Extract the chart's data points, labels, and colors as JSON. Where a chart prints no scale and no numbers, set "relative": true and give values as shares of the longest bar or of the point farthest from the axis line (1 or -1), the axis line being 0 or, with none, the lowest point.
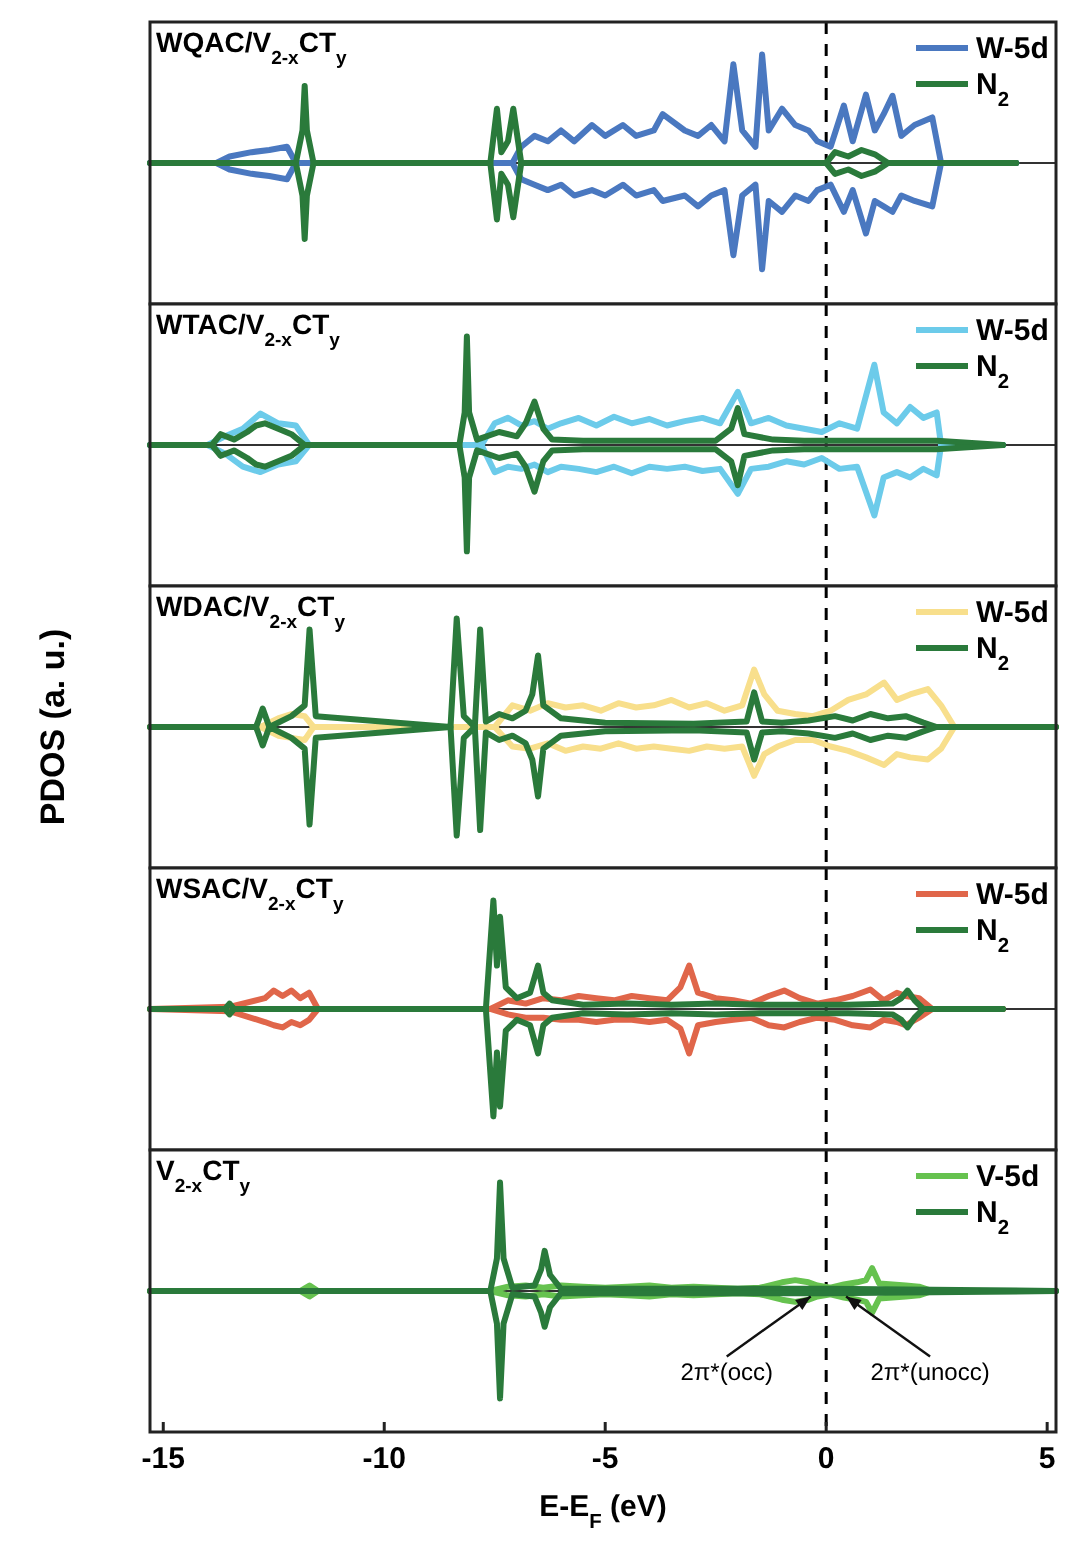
{
  "chart_data": [
    {
      "type": "line",
      "title": "WQAC/V$_{2-x}$CT$_{y}$",
      "relative": true,
      "xlim": [
        -15.3,
        5.2
      ],
      "xticks": [
        -15,
        -10,
        -5,
        0,
        5
      ],
      "tick_labels": false,
      "legend": "top right",
      "ref_lines": [
        {
          "axis": "x",
          "value": 0,
          "color": "#000000",
          "line_style": "dashed"
        }
      ],
      "series": [
        {
          "name": "W-5d",
          "color": "#4a78c0",
          "x": [
            -15.3,
            -13.8,
            -13.5,
            -13.0,
            -12.6,
            -12.2,
            -12.0,
            -7.1,
            -6.9,
            -6.6,
            -6.3,
            -6.0,
            -5.7,
            -5.3,
            -5.0,
            -4.6,
            -4.3,
            -3.9,
            -3.7,
            -3.2,
            -2.9,
            -2.6,
            -2.3,
            -2.1,
            -1.9,
            -1.6,
            -1.45,
            -1.3,
            -1.0,
            -0.7,
            -0.4,
            -0.2,
            0.1,
            0.4,
            0.6,
            0.9,
            1.1,
            1.3,
            1.5,
            1.7,
            2.0,
            2.4,
            2.6,
            4.3
          ],
          "values": [
            0,
            0,
            0.06,
            0.1,
            0.12,
            0.15,
            0,
            0,
            0.15,
            0.25,
            0.2,
            0.3,
            0.2,
            0.35,
            0.25,
            0.35,
            0.25,
            0.3,
            0.45,
            0.3,
            0.25,
            0.35,
            0.2,
            0.91,
            0.3,
            0.15,
            1.0,
            0.3,
            0.5,
            0.35,
            0.3,
            0.2,
            0.15,
            0.53,
            0.2,
            0.63,
            0.3,
            0.45,
            0.62,
            0.25,
            0.35,
            0.42,
            0,
            0
          ]
        },
        {
          "color": "#4a78c0",
          "x": [
            -15.3,
            -13.8,
            -13.5,
            -13.0,
            -12.6,
            -12.2,
            -12.0,
            -7.1,
            -6.9,
            -6.6,
            -6.3,
            -6.0,
            -5.7,
            -5.3,
            -5.0,
            -4.6,
            -4.3,
            -3.9,
            -3.7,
            -3.2,
            -2.9,
            -2.6,
            -2.3,
            -2.1,
            -1.9,
            -1.6,
            -1.45,
            -1.3,
            -1.0,
            -0.7,
            -0.4,
            -0.2,
            0.1,
            0.4,
            0.6,
            0.9,
            1.1,
            1.3,
            1.5,
            1.7,
            2.0,
            2.4,
            2.6,
            4.3
          ],
          "values": [
            0,
            0,
            -0.06,
            -0.1,
            -0.12,
            -0.15,
            0,
            0,
            -0.15,
            -0.2,
            -0.25,
            -0.2,
            -0.3,
            -0.25,
            -0.3,
            -0.2,
            -0.3,
            -0.25,
            -0.35,
            -0.3,
            -0.4,
            -0.3,
            -0.25,
            -0.85,
            -0.3,
            -0.2,
            -0.98,
            -0.35,
            -0.45,
            -0.3,
            -0.35,
            -0.25,
            -0.2,
            -0.45,
            -0.25,
            -0.65,
            -0.35,
            -0.4,
            -0.45,
            -0.3,
            -0.35,
            -0.4,
            0,
            0
          ]
        },
        {
          "name": "N$_{2}$",
          "color": "#2a7a3b",
          "x": [
            -15.3,
            -12.0,
            -11.85,
            -11.8,
            -11.75,
            -11.6,
            -7.6,
            -7.45,
            -7.35,
            -7.2,
            -7.08,
            -6.9,
            0.0,
            0.2,
            0.5,
            0.8,
            1.1,
            1.4,
            4.3
          ],
          "values": [
            0,
            0,
            0.3,
            0.71,
            0.3,
            0,
            0,
            0.5,
            0.1,
            0.2,
            0.5,
            0,
            0,
            0.1,
            0.06,
            0.12,
            0.08,
            0,
            0
          ]
        },
        {
          "color": "#2a7a3b",
          "x": [
            -15.3,
            -12.0,
            -11.85,
            -11.8,
            -11.75,
            -11.6,
            -7.6,
            -7.45,
            -7.35,
            -7.2,
            -7.08,
            -6.9,
            0.0,
            0.2,
            0.5,
            0.8,
            1.1,
            1.4,
            4.3
          ],
          "values": [
            0,
            0,
            -0.3,
            -0.7,
            -0.3,
            0,
            0,
            -0.52,
            -0.1,
            -0.2,
            -0.5,
            0,
            0,
            -0.1,
            -0.06,
            -0.12,
            -0.08,
            0,
            0
          ]
        }
      ]
    },
    {
      "type": "line",
      "title": "WTAC/V$_{2-x}$CT$_{y}$",
      "relative": true,
      "xlim": [
        -15.3,
        5.2
      ],
      "xticks": [
        -15,
        -10,
        -5,
        0,
        5
      ],
      "tick_labels": false,
      "legend": "top right",
      "ref_lines": [
        {
          "axis": "x",
          "value": 0,
          "color": "#000000",
          "line_style": "dashed"
        }
      ],
      "series": [
        {
          "name": "W-5d",
          "color": "#6ccbea",
          "x": [
            -15.3,
            -14.0,
            -13.6,
            -13.2,
            -12.8,
            -12.4,
            -12.0,
            -11.7,
            -7.8,
            -7.5,
            -7.2,
            -6.9,
            -6.6,
            -6.3,
            -6.0,
            -5.6,
            -5.2,
            -4.8,
            -4.4,
            -4.0,
            -3.6,
            -3.2,
            -2.8,
            -2.4,
            -2.0,
            -1.7,
            -1.3,
            -0.9,
            -0.5,
            -0.1,
            0.3,
            0.7,
            1.09,
            1.3,
            1.6,
            1.9,
            2.2,
            2.5,
            2.6,
            4.0
          ],
          "values": [
            0,
            0,
            0.08,
            0.15,
            0.29,
            0.2,
            0.18,
            0,
            0,
            0.2,
            0.25,
            0.18,
            0.22,
            0.15,
            0.2,
            0.25,
            0.18,
            0.26,
            0.2,
            0.24,
            0.18,
            0.22,
            0.25,
            0.2,
            0.49,
            0.2,
            0.25,
            0.18,
            0.15,
            0.12,
            0.2,
            0.15,
            0.74,
            0.3,
            0.2,
            0.35,
            0.25,
            0.3,
            0,
            0
          ]
        },
        {
          "color": "#6ccbea",
          "x": [
            -15.3,
            -14.0,
            -13.6,
            -13.2,
            -12.8,
            -12.4,
            -12.0,
            -11.7,
            -7.8,
            -7.5,
            -7.2,
            -6.9,
            -6.6,
            -6.3,
            -6.0,
            -5.6,
            -5.2,
            -4.8,
            -4.4,
            -4.0,
            -3.6,
            -3.2,
            -2.8,
            -2.4,
            -2.0,
            -1.7,
            -1.3,
            -0.9,
            -0.5,
            -0.1,
            0.3,
            0.7,
            1.09,
            1.3,
            1.6,
            1.9,
            2.2,
            2.5,
            2.6,
            4.0
          ],
          "values": [
            0,
            0,
            -0.08,
            -0.2,
            -0.25,
            -0.18,
            -0.15,
            0,
            0,
            -0.25,
            -0.2,
            -0.22,
            -0.18,
            -0.25,
            -0.2,
            -0.22,
            -0.25,
            -0.2,
            -0.26,
            -0.2,
            -0.22,
            -0.2,
            -0.24,
            -0.22,
            -0.45,
            -0.22,
            -0.2,
            -0.15,
            -0.18,
            -0.12,
            -0.22,
            -0.2,
            -0.65,
            -0.3,
            -0.25,
            -0.3,
            -0.22,
            -0.28,
            0,
            0
          ]
        },
        {
          "name": "N$_{2}$",
          "color": "#2a7a3b",
          "x": [
            -15.3,
            -13.9,
            -13.7,
            -13.4,
            -13.1,
            -12.9,
            -12.7,
            -12.4,
            -12.1,
            -11.8,
            -8.3,
            -8.18,
            -8.13,
            -8.08,
            -7.9,
            -7.4,
            -7.0,
            -6.8,
            -6.6,
            -6.4,
            -6.2,
            -5.5,
            -4.5,
            -3.5,
            -2.5,
            -2.15,
            -2.0,
            -1.85,
            -1.2,
            -0.5,
            0.5,
            1.5,
            2.5,
            4.0
          ],
          "values": [
            0,
            0,
            0.1,
            0.05,
            0.12,
            0.18,
            0.2,
            0.15,
            0.1,
            0,
            0,
            0.3,
            1.0,
            0.3,
            0.05,
            0.12,
            0.08,
            0.2,
            0.4,
            0.15,
            0.05,
            0.04,
            0.04,
            0.04,
            0.04,
            0.15,
            0.34,
            0.1,
            0.05,
            0.04,
            0.04,
            0.04,
            0.04,
            0
          ]
        },
        {
          "color": "#2a7a3b",
          "x": [
            -15.3,
            -13.9,
            -13.7,
            -13.4,
            -13.1,
            -12.9,
            -12.7,
            -12.4,
            -12.1,
            -11.8,
            -8.3,
            -8.18,
            -8.13,
            -8.08,
            -7.9,
            -7.4,
            -7.0,
            -6.8,
            -6.6,
            -6.4,
            -6.2,
            -5.5,
            -4.5,
            -3.5,
            -2.5,
            -2.15,
            -2.0,
            -1.85,
            -1.2,
            -0.5,
            0.5,
            1.5,
            2.5,
            4.0
          ],
          "values": [
            0,
            0,
            -0.1,
            -0.05,
            -0.12,
            -0.18,
            -0.2,
            -0.15,
            -0.1,
            0,
            0,
            -0.3,
            -0.98,
            -0.3,
            -0.05,
            -0.12,
            -0.08,
            -0.2,
            -0.43,
            -0.15,
            -0.05,
            -0.04,
            -0.04,
            -0.04,
            -0.04,
            -0.15,
            -0.37,
            -0.1,
            -0.05,
            -0.04,
            -0.04,
            -0.04,
            -0.04,
            0
          ]
        }
      ]
    },
    {
      "type": "line",
      "title": "WDAC/V$_{2-x}$CT$_{y}$",
      "ylabel": "PDOS (a. u.)",
      "relative": true,
      "xlim": [
        -15.3,
        5.2
      ],
      "xticks": [
        -15,
        -10,
        -5,
        0,
        5
      ],
      "tick_labels": false,
      "legend": "top right",
      "ref_lines": [
        {
          "axis": "x",
          "value": 0,
          "color": "#000000",
          "line_style": "dashed"
        }
      ],
      "series": [
        {
          "name": "W-5d",
          "color": "#f8df8c",
          "x": [
            -15.3,
            -12.8,
            -12.4,
            -12.1,
            -11.8,
            -11.6,
            -7.5,
            -7.1,
            -6.7,
            -6.3,
            -5.9,
            -5.5,
            -5.1,
            -4.7,
            -4.3,
            -3.9,
            -3.5,
            -3.1,
            -2.7,
            -2.3,
            -1.9,
            -1.63,
            -1.4,
            -1.1,
            -0.7,
            -0.3,
            0.1,
            0.5,
            0.9,
            1.31,
            1.6,
            1.9,
            2.3,
            2.6,
            2.9,
            5.2
          ],
          "values": [
            0,
            0,
            0.08,
            0.12,
            0.1,
            0,
            0,
            0.2,
            0.15,
            0.22,
            0.18,
            0.2,
            0.15,
            0.22,
            0.18,
            0.2,
            0.25,
            0.18,
            0.22,
            0.15,
            0.2,
            0.53,
            0.3,
            0.15,
            0.12,
            0.1,
            0.15,
            0.25,
            0.3,
            0.41,
            0.25,
            0.3,
            0.35,
            0.2,
            0,
            0
          ]
        },
        {
          "color": "#f8df8c",
          "x": [
            -15.3,
            -12.8,
            -12.4,
            -12.1,
            -11.8,
            -11.6,
            -7.5,
            -7.1,
            -6.7,
            -6.3,
            -5.9,
            -5.5,
            -5.1,
            -4.7,
            -4.3,
            -3.9,
            -3.5,
            -3.1,
            -2.7,
            -2.3,
            -1.9,
            -1.63,
            -1.4,
            -1.1,
            -0.7,
            -0.3,
            0.1,
            0.5,
            0.9,
            1.31,
            1.6,
            1.9,
            2.3,
            2.6,
            2.9,
            5.2
          ],
          "values": [
            0,
            0,
            -0.08,
            -0.1,
            -0.12,
            0,
            0,
            -0.18,
            -0.2,
            -0.15,
            -0.22,
            -0.18,
            -0.2,
            -0.15,
            -0.2,
            -0.18,
            -0.2,
            -0.22,
            -0.18,
            -0.2,
            -0.18,
            -0.45,
            -0.25,
            -0.18,
            -0.12,
            -0.12,
            -0.18,
            -0.22,
            -0.28,
            -0.35,
            -0.25,
            -0.28,
            -0.3,
            -0.2,
            0,
            0
          ]
        },
        {
          "name": "N$_{2}$",
          "color": "#2a7a3b",
          "x": [
            -15.3,
            -12.9,
            -12.75,
            -12.6,
            -12.1,
            -11.8,
            -11.69,
            -11.55,
            -8.5,
            -8.36,
            -8.2,
            -7.95,
            -7.83,
            -7.7,
            -7.4,
            -7.1,
            -6.8,
            -6.65,
            -6.52,
            -6.4,
            -6.0,
            -5.0,
            -3.0,
            -1.8,
            -1.63,
            -1.45,
            -1.0,
            -0.4,
            0.2,
            0.6,
            1.0,
            1.4,
            1.8,
            2.2,
            2.5,
            5.2
          ],
          "values": [
            0,
            0,
            0.17,
            0,
            0.1,
            0.2,
            0.9,
            0.1,
            0,
            1.0,
            0.1,
            0,
            0.9,
            0.05,
            0.12,
            0.08,
            0.15,
            0.3,
            0.66,
            0.2,
            0.08,
            0.04,
            0.03,
            0.05,
            0.32,
            0.05,
            0.04,
            0.06,
            0.1,
            0.06,
            0.12,
            0.08,
            0.1,
            0.04,
            0,
            0
          ]
        },
        {
          "color": "#2a7a3b",
          "x": [
            -15.3,
            -12.9,
            -12.75,
            -12.6,
            -12.1,
            -11.8,
            -11.69,
            -11.55,
            -8.5,
            -8.36,
            -8.2,
            -7.95,
            -7.83,
            -7.7,
            -7.4,
            -7.1,
            -6.8,
            -6.65,
            -6.52,
            -6.4,
            -6.0,
            -5.0,
            -3.0,
            -1.8,
            -1.63,
            -1.45,
            -1.0,
            -0.4,
            0.2,
            0.6,
            1.0,
            1.4,
            1.8,
            2.2,
            2.5,
            5.2
          ],
          "values": [
            0,
            0,
            -0.17,
            0,
            -0.1,
            -0.2,
            -0.9,
            -0.1,
            0,
            -1.0,
            -0.1,
            0,
            -0.95,
            -0.05,
            -0.12,
            -0.08,
            -0.15,
            -0.3,
            -0.64,
            -0.2,
            -0.08,
            -0.04,
            -0.03,
            -0.05,
            -0.3,
            -0.05,
            -0.04,
            -0.06,
            -0.1,
            -0.06,
            -0.12,
            -0.08,
            -0.1,
            -0.04,
            0,
            0
          ]
        }
      ]
    },
    {
      "type": "line",
      "title": "WSAC/V$_{2-x}$CT$_{y}$",
      "relative": true,
      "xlim": [
        -15.3,
        5.2
      ],
      "xticks": [
        -15,
        -10,
        -5,
        0,
        5
      ],
      "tick_labels": false,
      "legend": "top right",
      "ref_lines": [
        {
          "axis": "x",
          "value": 0,
          "color": "#000000",
          "line_style": "dashed"
        }
      ],
      "series": [
        {
          "name": "W-5d",
          "color": "#e0664a",
          "x": [
            -15.3,
            -13.5,
            -12.7,
            -12.5,
            -12.3,
            -12.1,
            -11.9,
            -11.7,
            -11.5,
            -7.6,
            -7.2,
            -6.8,
            -6.4,
            -6.0,
            -5.6,
            -5.2,
            -4.8,
            -4.4,
            -4.0,
            -3.6,
            -3.3,
            -3.1,
            -2.9,
            -2.5,
            -2.1,
            -1.7,
            -1.3,
            -0.95,
            -0.6,
            -0.2,
            0.2,
            0.6,
            1.0,
            1.3,
            1.6,
            1.8,
            2.1,
            2.4,
            4.0
          ],
          "values": [
            0,
            0.02,
            0.1,
            0.17,
            0.12,
            0.17,
            0.1,
            0.15,
            0,
            0,
            0.08,
            0.05,
            0.1,
            0.08,
            0.12,
            0.1,
            0.08,
            0.12,
            0.1,
            0.08,
            0.2,
            0.4,
            0.15,
            0.1,
            0.08,
            0.05,
            0.12,
            0.17,
            0.1,
            0.05,
            0.08,
            0.12,
            0.18,
            0.08,
            0.15,
            0.12,
            0.1,
            0,
            0
          ]
        },
        {
          "color": "#e0664a",
          "x": [
            -15.3,
            -13.5,
            -12.7,
            -12.5,
            -12.3,
            -12.1,
            -11.9,
            -11.7,
            -11.5,
            -7.6,
            -7.2,
            -6.8,
            -6.4,
            -6.0,
            -5.6,
            -5.2,
            -4.8,
            -4.4,
            -4.0,
            -3.6,
            -3.3,
            -3.1,
            -2.9,
            -2.5,
            -2.1,
            -1.7,
            -1.3,
            -0.95,
            -0.6,
            -0.2,
            0.2,
            0.6,
            1.0,
            1.3,
            1.6,
            1.8,
            2.1,
            2.4,
            4.0
          ],
          "values": [
            0,
            -0.02,
            -0.12,
            -0.15,
            -0.17,
            -0.12,
            -0.15,
            -0.1,
            0,
            0,
            -0.05,
            -0.08,
            -0.08,
            -0.1,
            -0.1,
            -0.12,
            -0.1,
            -0.1,
            -0.12,
            -0.1,
            -0.18,
            -0.41,
            -0.15,
            -0.12,
            -0.1,
            -0.08,
            -0.15,
            -0.17,
            -0.12,
            -0.08,
            -0.1,
            -0.15,
            -0.17,
            -0.1,
            -0.12,
            -0.15,
            -0.08,
            0,
            0
          ]
        },
        {
          "name": "N$_{2}$",
          "color": "#2a7a3b",
          "x": [
            -15.3,
            -13.6,
            -13.5,
            -13.4,
            -7.7,
            -7.53,
            -7.45,
            -7.38,
            -7.25,
            -7.0,
            -6.7,
            -6.52,
            -6.4,
            -6.2,
            -5.5,
            -4.5,
            -3.5,
            -2.5,
            -1.5,
            -0.5,
            0.5,
            1.5,
            1.7,
            1.84,
            2.0,
            2.2,
            4.0
          ],
          "values": [
            0,
            0,
            0.05,
            0,
            0,
            1.0,
            0.4,
            0.85,
            0.2,
            0.1,
            0.15,
            0.4,
            0.15,
            0.08,
            0.04,
            0.05,
            0.04,
            0.05,
            0.04,
            0.04,
            0.04,
            0.05,
            0.1,
            0.17,
            0.08,
            0,
            0
          ]
        },
        {
          "color": "#2a7a3b",
          "x": [
            -15.3,
            -13.6,
            -13.5,
            -13.4,
            -7.7,
            -7.53,
            -7.45,
            -7.38,
            -7.25,
            -7.0,
            -6.7,
            -6.52,
            -6.4,
            -6.2,
            -5.5,
            -4.5,
            -3.5,
            -2.5,
            -1.5,
            -0.5,
            0.5,
            1.5,
            1.7,
            1.84,
            2.0,
            2.2,
            4.0
          ],
          "values": [
            0,
            0,
            -0.05,
            0,
            0,
            -0.99,
            -0.4,
            -0.9,
            -0.2,
            -0.1,
            -0.15,
            -0.41,
            -0.15,
            -0.08,
            -0.04,
            -0.05,
            -0.04,
            -0.05,
            -0.04,
            -0.04,
            -0.04,
            -0.05,
            -0.1,
            -0.17,
            -0.08,
            0,
            0
          ]
        }
      ]
    },
    {
      "type": "line",
      "title": "V$_{2-x}$CT$_{y}$",
      "xlabel": "E-E$_{F}$ (eV)",
      "relative": true,
      "xlim": [
        -15.3,
        5.2
      ],
      "xticks": [
        -15,
        -10,
        -5,
        0,
        5
      ],
      "tick_labels": "x",
      "legend": "top right",
      "ref_lines": [
        {
          "axis": "x",
          "value": 0,
          "color": "#000000",
          "line_style": "dashed"
        }
      ],
      "annotations": [
        {
          "text": "2π*(occ)",
          "x": -0.35,
          "y": -0.05
        },
        {
          "text": "2π*(unocc)",
          "x": 0.45,
          "y": -0.05
        }
      ],
      "series": [
        {
          "name": "V-5d",
          "color": "#66c24f",
          "x": [
            -15.3,
            -11.9,
            -11.69,
            -11.5,
            -7.6,
            -7.2,
            -6.8,
            -6.4,
            -6.0,
            -5.5,
            -5.0,
            -4.5,
            -4.0,
            -3.5,
            -3.0,
            -2.5,
            -2.0,
            -1.5,
            -1.0,
            -0.7,
            -0.4,
            -0.2,
            0.1,
            0.4,
            0.7,
            0.9,
            1.04,
            1.2,
            1.5,
            1.8,
            2.1,
            2.4,
            5.2
          ],
          "values": [
            0,
            0,
            0.05,
            0,
            0,
            0.04,
            0.05,
            0.03,
            0.05,
            0.04,
            0.03,
            0.04,
            0.05,
            0.03,
            0.04,
            0.03,
            0.02,
            0.03,
            0.08,
            0.1,
            0.08,
            0.05,
            0.03,
            0.06,
            0.08,
            0.1,
            0.21,
            0.07,
            0.06,
            0.05,
            0.04,
            0,
            0
          ]
        },
        {
          "color": "#66c24f",
          "x": [
            -15.3,
            -11.9,
            -11.69,
            -11.5,
            -7.6,
            -7.2,
            -6.8,
            -6.4,
            -6.0,
            -5.5,
            -5.0,
            -4.5,
            -4.0,
            -3.5,
            -3.0,
            -2.5,
            -2.0,
            -1.5,
            -1.0,
            -0.7,
            -0.4,
            -0.2,
            0.1,
            0.4,
            0.7,
            0.9,
            1.04,
            1.2,
            1.5,
            1.8,
            2.1,
            2.4,
            5.2
          ],
          "values": [
            0,
            0,
            -0.05,
            0,
            0,
            -0.04,
            -0.05,
            -0.03,
            -0.05,
            -0.04,
            -0.03,
            -0.04,
            -0.05,
            -0.03,
            -0.04,
            -0.03,
            -0.02,
            -0.03,
            -0.08,
            -0.1,
            -0.08,
            -0.05,
            -0.03,
            -0.06,
            -0.08,
            -0.1,
            -0.2,
            -0.07,
            -0.06,
            -0.05,
            -0.04,
            0,
            0
          ]
        },
        {
          "name": "N$_{2}$",
          "color": "#2a7a3b",
          "x": [
            -15.3,
            -7.6,
            -7.45,
            -7.38,
            -7.3,
            -7.1,
            -6.6,
            -6.45,
            -6.37,
            -6.25,
            -6.0,
            -3.0,
            0.0,
            3.0,
            5.2
          ],
          "values": [
            0,
            0,
            0.3,
            1.0,
            0.3,
            0.03,
            0.05,
            0.2,
            0.37,
            0.15,
            0.02,
            0.02,
            0.02,
            0.01,
            0
          ]
        },
        {
          "color": "#2a7a3b",
          "x": [
            -15.3,
            -7.6,
            -7.45,
            -7.38,
            -7.3,
            -7.1,
            -6.6,
            -6.45,
            -6.37,
            -6.25,
            -6.0,
            -3.0,
            0.0,
            3.0,
            5.2
          ],
          "values": [
            0,
            0,
            -0.3,
            -0.99,
            -0.3,
            -0.03,
            -0.05,
            -0.2,
            -0.33,
            -0.15,
            -0.02,
            -0.02,
            -0.02,
            -0.01,
            0
          ]
        }
      ]
    }
  ]
}
